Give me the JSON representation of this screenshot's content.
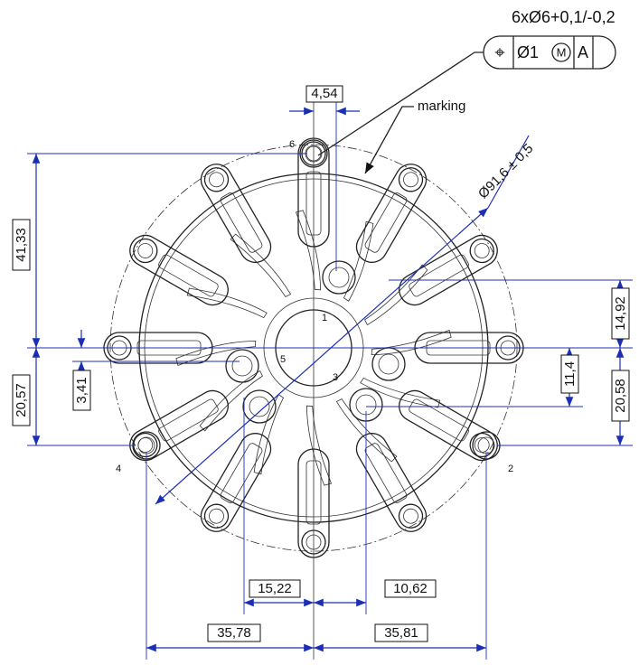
{
  "callout": {
    "hole_spec": "6xØ6+0,1/-0,2",
    "frame": {
      "symbol": "⌖",
      "tolerance": "Ø1",
      "modifier": "M",
      "datum": "A"
    }
  },
  "dimensions": {
    "hole_spacing_top": "4,54",
    "diameter": "Ø91,6 ± 0,5",
    "left_top": "41,33",
    "left_bottom": "20,57",
    "left_small": "3,41",
    "right_top": "14,92",
    "right_middle": "11,4",
    "right_bottom": "20,58",
    "bottom_inner_left": "15,22",
    "bottom_inner_right": "10,62",
    "bottom_outer_left": "35,78",
    "bottom_outer_right": "35,81"
  },
  "annotations": {
    "marking": "marking"
  },
  "hole_numbers": [
    "6",
    "1",
    "5",
    "3",
    "4",
    "2"
  ]
}
